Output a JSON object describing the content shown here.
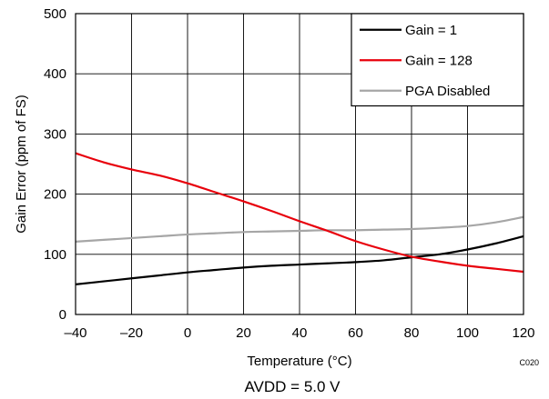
{
  "chart_data": {
    "type": "line",
    "xlabel": "Temperature (°C)",
    "ylabel": "Gain Error (ppm of FS)",
    "xlim": [
      -40,
      120
    ],
    "ylim": [
      0,
      500
    ],
    "xticks": [
      -40,
      -20,
      0,
      20,
      40,
      60,
      80,
      100,
      120
    ],
    "yticks": [
      0,
      100,
      200,
      300,
      400,
      500
    ],
    "x_tick_labels": [
      "–40",
      "–20",
      "0",
      "20",
      "40",
      "60",
      "80",
      "100",
      "120"
    ],
    "y_tick_labels": [
      "0",
      "100",
      "200",
      "300",
      "400",
      "500"
    ],
    "grid": true,
    "legend_position": "top-right",
    "series": [
      {
        "name": "Gain = 1",
        "color": "#000000",
        "x": [
          -40,
          -30,
          -20,
          -10,
          0,
          10,
          20,
          30,
          40,
          50,
          60,
          70,
          80,
          90,
          100,
          110,
          120
        ],
        "y": [
          50,
          55,
          60,
          65,
          70,
          74,
          78,
          81,
          83,
          85,
          87,
          90,
          95,
          100,
          108,
          118,
          130
        ]
      },
      {
        "name": "Gain = 128",
        "color": "#e8000b",
        "x": [
          -40,
          -30,
          -20,
          -10,
          0,
          10,
          20,
          30,
          40,
          50,
          60,
          70,
          80,
          90,
          100,
          110,
          120
        ],
        "y": [
          268,
          253,
          241,
          231,
          218,
          203,
          188,
          172,
          155,
          139,
          122,
          108,
          96,
          88,
          81,
          76,
          71
        ]
      },
      {
        "name": "PGA Disabled",
        "color": "#a6a6a6",
        "x": [
          -40,
          -30,
          -20,
          -10,
          0,
          10,
          20,
          30,
          40,
          50,
          60,
          70,
          80,
          90,
          100,
          110,
          120
        ],
        "y": [
          121,
          124,
          127,
          130,
          133,
          135,
          137,
          138,
          139,
          140,
          140,
          141,
          142,
          144,
          147,
          153,
          162
        ]
      }
    ],
    "figure_code": "C020",
    "caption": "AVDD = 5.0 V"
  }
}
